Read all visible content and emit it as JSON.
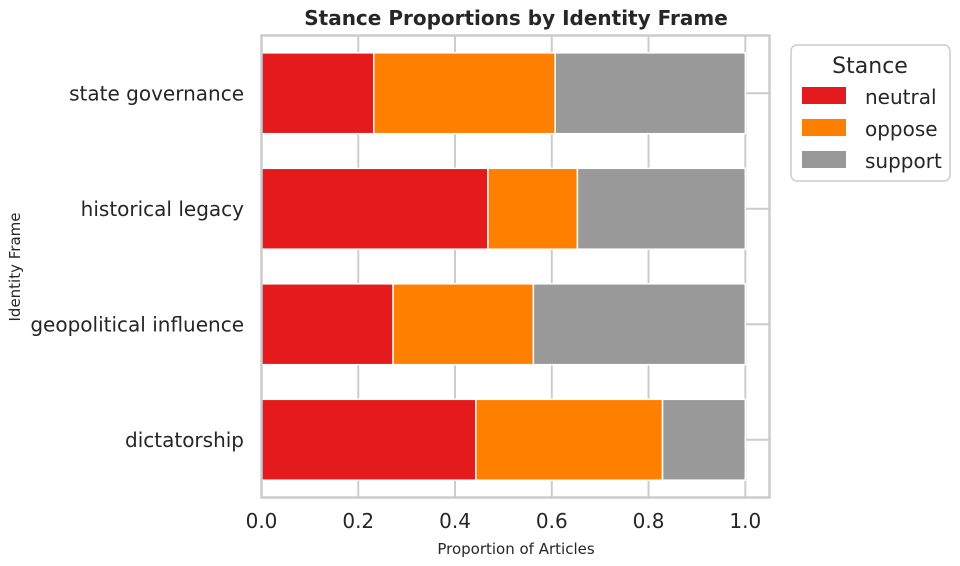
{
  "chart_data": {
    "type": "bar",
    "orientation": "horizontal",
    "stacked": true,
    "title": "Stance Proportions by Identity Frame",
    "xlabel": "Proportion of Articles",
    "ylabel": "Identity Frame",
    "xlim": [
      0.0,
      1.05
    ],
    "xticks": [
      "0.0",
      "0.2",
      "0.4",
      "0.6",
      "0.8",
      "1.0"
    ],
    "grid": true,
    "categories": [
      "state governance",
      "historical legacy",
      "geopolitical influence",
      "dictatorship"
    ],
    "series": [
      {
        "name": "neutral",
        "color": "#e41a1c",
        "values": [
          0.232,
          0.468,
          0.272,
          0.443
        ]
      },
      {
        "name": "oppose",
        "color": "#ff7f00",
        "values": [
          0.375,
          0.185,
          0.29,
          0.386
        ]
      },
      {
        "name": "support",
        "color": "#999999",
        "values": [
          0.393,
          0.347,
          0.438,
          0.171
        ]
      }
    ],
    "legend": {
      "title": "Stance",
      "placement": "outside-top-right"
    }
  }
}
